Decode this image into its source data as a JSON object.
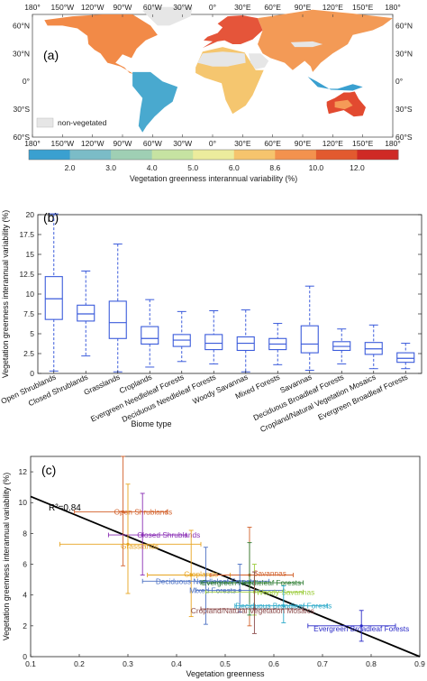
{
  "panel_a": {
    "label": "(a)",
    "top_lon_labels": [
      "180°",
      "150°W",
      "120°W",
      "90°W",
      "60°W",
      "30°W",
      "0°",
      "30°E",
      "60°E",
      "90°E",
      "120°E",
      "150°E",
      "180°"
    ],
    "bottom_lon_labels": [
      "180°",
      "150°W",
      "120°W",
      "90°W",
      "60°W",
      "30°W",
      "0°",
      "30°E",
      "60°E",
      "90°E",
      "120°E",
      "150°E",
      "180°"
    ],
    "left_lat_labels": [
      "60°N",
      "30°N",
      "0°",
      "30°S",
      "60°S"
    ],
    "right_lat_labels": [
      "60°N",
      "30°N",
      "0°",
      "30°S",
      "60°S"
    ],
    "legend_nonveg": "non-vegetated",
    "colorbar": {
      "ticks": [
        "2.0",
        "3.0",
        "4.0",
        "5.0",
        "6.0",
        "8.6",
        "10.0",
        "12.0"
      ],
      "colors": [
        "#3aa0d0",
        "#7bbcc7",
        "#9fcfb4",
        "#c6e3a2",
        "#ecec9d",
        "#f6c46d",
        "#f3924e",
        "#e25a2f",
        "#cf2a25"
      ],
      "title": "Vegetation greenness interannual variability (%)"
    }
  },
  "chart_data": [
    {
      "type": "box",
      "label": "(b)",
      "xlabel": "Biome type",
      "ylabel": "Vegetation greenness interannual variability (%)",
      "ylim": [
        0,
        20
      ],
      "yticks": [
        0,
        2.5,
        5,
        7.5,
        10,
        12.5,
        15,
        17.5,
        20
      ],
      "color": "#3b5bdb",
      "categories": [
        "Open Shrublands",
        "Closed Shrublands",
        "Grasslands",
        "Croplands",
        "Evergreen Needleleaf Forests",
        "Deciduous Needleleaf Forests",
        "Woody Savannas",
        "Mixed Forests",
        "Savannas",
        "Deciduous Broadleaf Forests",
        "Cropland/Natural Vegetation Mosaics",
        "Evergreen Broadleaf Forests"
      ],
      "boxes": [
        {
          "min": 0.3,
          "q1": 6.8,
          "median": 9.4,
          "q3": 12.2,
          "max": 20.1
        },
        {
          "min": 2.2,
          "q1": 6.6,
          "median": 7.5,
          "q3": 8.6,
          "max": 12.9
        },
        {
          "min": 0.2,
          "q1": 4.4,
          "median": 6.4,
          "q3": 9.1,
          "max": 16.3
        },
        {
          "min": 0.8,
          "q1": 3.7,
          "median": 4.4,
          "q3": 5.9,
          "max": 9.3
        },
        {
          "min": 1.5,
          "q1": 3.4,
          "median": 4.2,
          "q3": 4.9,
          "max": 7.8
        },
        {
          "min": 1.2,
          "q1": 3.0,
          "median": 3.8,
          "q3": 4.9,
          "max": 7.9
        },
        {
          "min": 0.2,
          "q1": 2.9,
          "median": 3.8,
          "q3": 4.6,
          "max": 8.0
        },
        {
          "min": 1.1,
          "q1": 3.0,
          "median": 3.7,
          "q3": 4.4,
          "max": 6.3
        },
        {
          "min": 0.4,
          "q1": 2.6,
          "median": 3.7,
          "q3": 6.0,
          "max": 11.0
        },
        {
          "min": 1.2,
          "q1": 2.9,
          "median": 3.4,
          "q3": 4.0,
          "max": 5.6
        },
        {
          "min": 0.6,
          "q1": 2.4,
          "median": 3.1,
          "q3": 3.9,
          "max": 6.1
        },
        {
          "min": 0.6,
          "q1": 1.4,
          "median": 1.9,
          "q3": 2.6,
          "max": 3.8
        }
      ]
    },
    {
      "type": "scatter",
      "label": "(c)",
      "xlabel": "Vegetation greenness",
      "ylabel": "Vegetation greenness interannual variability (%)",
      "xlim": [
        0.1,
        0.9
      ],
      "ylim": [
        0,
        13
      ],
      "xticks": [
        "0.1",
        "0.2",
        "0.3",
        "0.4",
        "0.5",
        "0.6",
        "0.7",
        "0.8",
        "0.9"
      ],
      "yticks": [
        0,
        2,
        4,
        6,
        8,
        10,
        12
      ],
      "annotation": "R²=0.84",
      "fit_line": {
        "x": [
          0.1,
          0.9
        ],
        "y": [
          10.4,
          0.0
        ],
        "color": "#000000"
      },
      "points": [
        {
          "name": "Open Shrublands",
          "x": 0.29,
          "y": 9.4,
          "xerr": [
            0.19,
            0.38
          ],
          "yerr": [
            5.9,
            13.0
          ],
          "color": "#d2602a"
        },
        {
          "name": "Closed Shrublands",
          "x": 0.33,
          "y": 7.9,
          "xerr": [
            0.26,
            0.42
          ],
          "yerr": [
            5.3,
            10.6
          ],
          "color": "#8a2fb5"
        },
        {
          "name": "Grasslands",
          "x": 0.3,
          "y": 7.3,
          "xerr": [
            0.16,
            0.45
          ],
          "yerr": [
            4.1,
            11.2
          ],
          "color": "#e7a420"
        },
        {
          "name": "Croplands",
          "x": 0.43,
          "y": 5.3,
          "xerr": [
            0.34,
            0.51
          ],
          "yerr": [
            2.6,
            8.2
          ],
          "color": "#e7a420"
        },
        {
          "name": "Deciduous Needleleaf Forests",
          "x": 0.46,
          "y": 4.9,
          "xerr": [
            0.33,
            0.59
          ],
          "yerr": [
            2.1,
            7.1
          ],
          "color": "#4a6fc2"
        },
        {
          "name": "Savannas",
          "x": 0.55,
          "y": 5.3,
          "xerr": [
            0.47,
            0.64
          ],
          "yerr": [
            2.0,
            8.4
          ],
          "color": "#d2602a"
        },
        {
          "name": "Evergreen Needleleaf Forests",
          "x": 0.55,
          "y": 4.8,
          "xerr": [
            0.45,
            0.66
          ],
          "yerr": [
            2.7,
            7.4
          ],
          "color": "#2e7d32"
        },
        {
          "name": "Mixed Forests",
          "x": 0.53,
          "y": 4.3,
          "xerr": [
            0.44,
            0.62
          ],
          "yerr": [
            2.9,
            6.0
          ],
          "color": "#4a6fc2"
        },
        {
          "name": "Woody Savannas",
          "x": 0.56,
          "y": 4.2,
          "xerr": [
            0.46,
            0.66
          ],
          "yerr": [
            2.7,
            6.0
          ],
          "color": "#9ccc3c"
        },
        {
          "name": "Deciduous Broadleaf Forests",
          "x": 0.62,
          "y": 3.3,
          "xerr": [
            0.52,
            0.71
          ],
          "yerr": [
            2.2,
            4.6
          ],
          "color": "#2aa9c9"
        },
        {
          "name": "Cropland/Natural Vegetation Mosaics",
          "x": 0.56,
          "y": 3.1,
          "xerr": [
            0.45,
            0.66
          ],
          "yerr": [
            1.5,
            5.5
          ],
          "color": "#8b4a4a"
        },
        {
          "name": "Evergreen Broadleaf Forests",
          "x": 0.78,
          "y": 2.0,
          "xerr": [
            0.67,
            0.85
          ],
          "yerr": [
            1.0,
            3.0
          ],
          "color": "#2929c7"
        }
      ]
    }
  ]
}
